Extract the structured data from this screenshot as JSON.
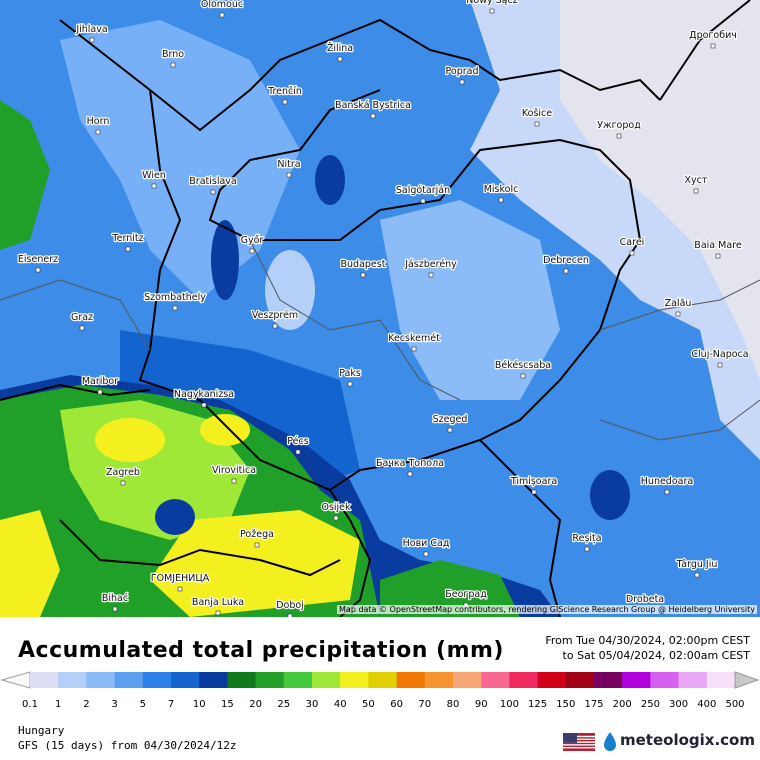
{
  "title": "Accumulated total precipitation (mm)",
  "period": {
    "from": "From Tue 04/30/2024, 02:00pm CEST",
    "to": "to Sat 05/04/2024, 02:00am CEST"
  },
  "region": "Hungary",
  "model": "GFS (15 days) from  04/30/2024/12z",
  "attribution": "Map data © OpenStreetMap contributors, rendering GIScience Research Group @ Heidelberg University",
  "brand": "meteologix.com",
  "legend": {
    "labels": [
      0.1,
      1,
      2,
      3,
      5,
      7,
      10,
      15,
      20,
      25,
      30,
      40,
      50,
      60,
      70,
      80,
      90,
      100,
      125,
      150,
      175,
      200,
      250,
      300,
      400,
      500
    ],
    "colors": [
      "#dcdcf4",
      "#b4d0f8",
      "#8cbcf8",
      "#5ca0f0",
      "#2c80e8",
      "#1464d0",
      "#0a3ca0",
      "#127a1c",
      "#20a028",
      "#44c83c",
      "#a0e838",
      "#f4f020",
      "#e0d000",
      "#f07800",
      "#f89430",
      "#f8a878",
      "#f86890",
      "#f02860",
      "#d00018",
      "#a00018",
      "#780060",
      "#b000e0",
      "#d860f0",
      "#eca8f8",
      "#f8e0f8"
    ]
  },
  "cities": [
    "Olomouc",
    "Nowy Sącz",
    "Дрогобич",
    "Jihlava",
    "Brno",
    "Žilina",
    "Poprad",
    "Trenčín",
    "Banská Bystrica",
    "Košice",
    "Ужгород",
    "Horn",
    "Nitra",
    "Wien",
    "Bratislava",
    "Salgótarján",
    "Miskolc",
    "Хуст",
    "Ternitz",
    "Győr",
    "Carei",
    "Baia Mare",
    "Eisenerz",
    "Budapest",
    "Jászberény",
    "Debrecen",
    "Szombathely",
    "Zalău",
    "Graz",
    "Veszprém",
    "Kecskemét",
    "Cluj-Napoca",
    "Maribor",
    "Paks",
    "Békéscsaba",
    "Nagykanizsa",
    "Szeged",
    "Pécs",
    "Zagreb",
    "Virovitica",
    "Бачка Топола",
    "Timișoara",
    "Hunedoara",
    "Osijek",
    "Požega",
    "Нови Сад",
    "Reșița",
    "Târgu Jiu",
    "ГОМЈЕНИЦА",
    "Београд",
    "Bihać",
    "Banja Luka",
    "Drobeta",
    "Doboj"
  ]
}
